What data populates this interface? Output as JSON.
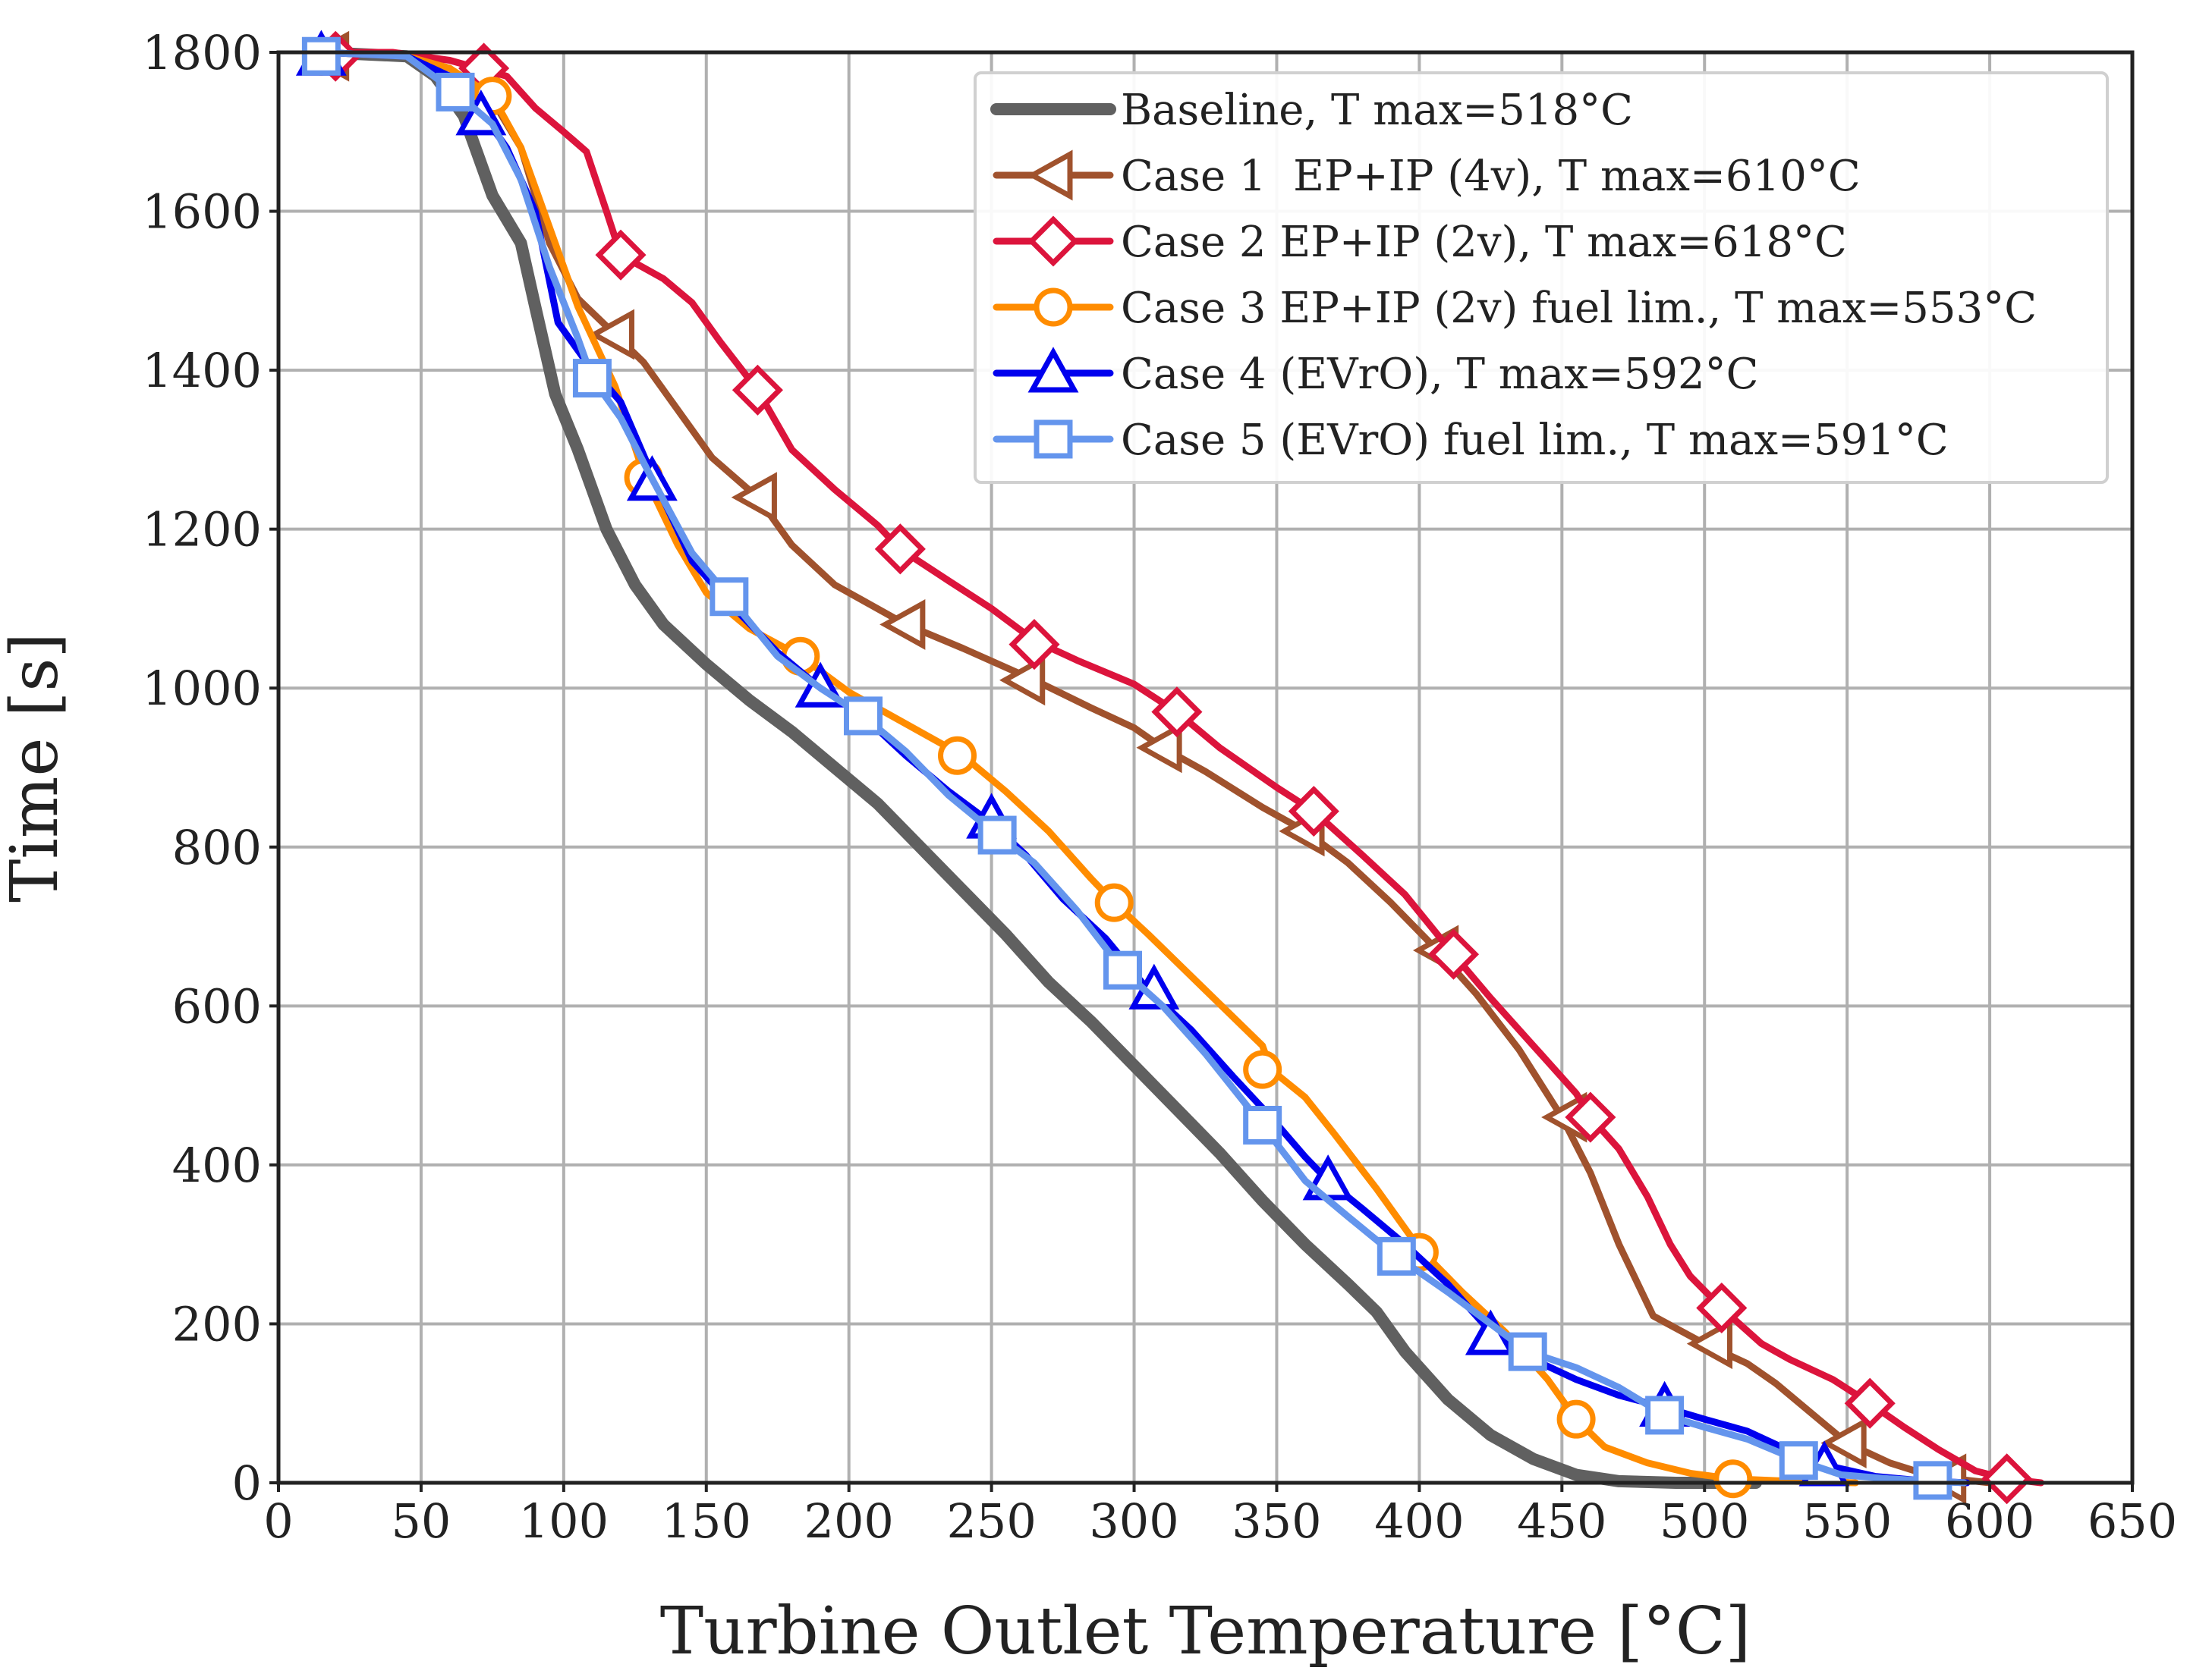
{
  "chart_data": {
    "type": "line",
    "title": "",
    "xlabel": "Turbine Outlet Temperature [°C]",
    "ylabel": "Time [s]",
    "xlim": [
      0,
      650
    ],
    "ylim": [
      0,
      1800
    ],
    "xticks": [
      0,
      50,
      100,
      150,
      200,
      250,
      300,
      350,
      400,
      450,
      500,
      550,
      600,
      650
    ],
    "yticks": [
      0,
      200,
      400,
      600,
      800,
      1000,
      1200,
      1400,
      1600,
      1800
    ],
    "grid": true,
    "legend_position": "top-right",
    "series": [
      {
        "name": "Baseline, T max=518°C",
        "color": "#606060",
        "marker": "none",
        "line_width": 16,
        "points": [
          [
            15,
            1800
          ],
          [
            45,
            1795
          ],
          [
            55,
            1770
          ],
          [
            65,
            1720
          ],
          [
            75,
            1620
          ],
          [
            85,
            1560
          ],
          [
            90,
            1480
          ],
          [
            97,
            1370
          ],
          [
            105,
            1300
          ],
          [
            115,
            1200
          ],
          [
            125,
            1130
          ],
          [
            135,
            1080
          ],
          [
            150,
            1030
          ],
          [
            165,
            985
          ],
          [
            180,
            945
          ],
          [
            195,
            900
          ],
          [
            210,
            855
          ],
          [
            225,
            800
          ],
          [
            240,
            745
          ],
          [
            255,
            690
          ],
          [
            270,
            630
          ],
          [
            285,
            580
          ],
          [
            300,
            525
          ],
          [
            315,
            470
          ],
          [
            330,
            415
          ],
          [
            345,
            355
          ],
          [
            360,
            300
          ],
          [
            375,
            250
          ],
          [
            385,
            215
          ],
          [
            395,
            165
          ],
          [
            410,
            105
          ],
          [
            425,
            60
          ],
          [
            440,
            30
          ],
          [
            455,
            10
          ],
          [
            470,
            2
          ],
          [
            490,
            0
          ],
          [
            518,
            0
          ]
        ],
        "markers": []
      },
      {
        "name": "Case 1  EP+IP (4v), T max=610°C",
        "color": "#A0522D",
        "marker": "triangle-left",
        "line_width": 9,
        "points": [
          [
            15,
            1800
          ],
          [
            45,
            1795
          ],
          [
            60,
            1780
          ],
          [
            75,
            1740
          ],
          [
            85,
            1680
          ],
          [
            95,
            1560
          ],
          [
            105,
            1490
          ],
          [
            118,
            1445
          ],
          [
            128,
            1410
          ],
          [
            140,
            1350
          ],
          [
            152,
            1290
          ],
          [
            168,
            1240
          ],
          [
            180,
            1180
          ],
          [
            195,
            1130
          ],
          [
            210,
            1100
          ],
          [
            220,
            1080
          ],
          [
            240,
            1050
          ],
          [
            265,
            1010
          ],
          [
            285,
            975
          ],
          [
            300,
            950
          ],
          [
            310,
            925
          ],
          [
            325,
            895
          ],
          [
            345,
            850
          ],
          [
            360,
            820
          ],
          [
            375,
            780
          ],
          [
            390,
            730
          ],
          [
            405,
            675
          ],
          [
            420,
            615
          ],
          [
            435,
            545
          ],
          [
            450,
            460
          ],
          [
            460,
            390
          ],
          [
            470,
            300
          ],
          [
            482,
            210
          ],
          [
            500,
            175
          ],
          [
            515,
            150
          ],
          [
            525,
            125
          ],
          [
            540,
            80
          ],
          [
            550,
            50
          ],
          [
            565,
            25
          ],
          [
            580,
            8
          ],
          [
            600,
            0
          ],
          [
            610,
            0
          ]
        ],
        "markers": [
          [
            18,
            1795
          ],
          [
            118,
            1445
          ],
          [
            168,
            1240
          ],
          [
            220,
            1080
          ],
          [
            262,
            1010
          ],
          [
            310,
            925
          ],
          [
            360,
            820
          ],
          [
            407,
            670
          ],
          [
            452,
            460
          ],
          [
            503,
            175
          ],
          [
            550,
            50
          ],
          [
            585,
            5
          ]
        ]
      },
      {
        "name": "Case 2 EP+IP (2v), T max=618°C",
        "color": "#DC143C",
        "marker": "diamond",
        "line_width": 9,
        "points": [
          [
            15,
            1800
          ],
          [
            40,
            1800
          ],
          [
            60,
            1790
          ],
          [
            70,
            1780
          ],
          [
            80,
            1770
          ],
          [
            90,
            1730
          ],
          [
            100,
            1700
          ],
          [
            108,
            1675
          ],
          [
            115,
            1600
          ],
          [
            120,
            1545
          ],
          [
            135,
            1515
          ],
          [
            145,
            1485
          ],
          [
            155,
            1435
          ],
          [
            168,
            1375
          ],
          [
            180,
            1300
          ],
          [
            195,
            1250
          ],
          [
            210,
            1205
          ],
          [
            218,
            1175
          ],
          [
            235,
            1135
          ],
          [
            250,
            1100
          ],
          [
            265,
            1060
          ],
          [
            280,
            1035
          ],
          [
            300,
            1005
          ],
          [
            315,
            970
          ],
          [
            330,
            925
          ],
          [
            350,
            875
          ],
          [
            363,
            845
          ],
          [
            380,
            790
          ],
          [
            395,
            740
          ],
          [
            412,
            665
          ],
          [
            425,
            610
          ],
          [
            440,
            550
          ],
          [
            455,
            490
          ],
          [
            460,
            460
          ],
          [
            470,
            420
          ],
          [
            480,
            360
          ],
          [
            488,
            300
          ],
          [
            495,
            260
          ],
          [
            506,
            220
          ],
          [
            520,
            175
          ],
          [
            530,
            155
          ],
          [
            545,
            130
          ],
          [
            558,
            100
          ],
          [
            570,
            70
          ],
          [
            582,
            42
          ],
          [
            595,
            15
          ],
          [
            606,
            5
          ],
          [
            618,
            0
          ]
        ],
        "markers": [
          [
            20,
            1795
          ],
          [
            72,
            1780
          ],
          [
            120,
            1545
          ],
          [
            168,
            1375
          ],
          [
            218,
            1175
          ],
          [
            265,
            1055
          ],
          [
            315,
            970
          ],
          [
            363,
            845
          ],
          [
            412,
            665
          ],
          [
            460,
            460
          ],
          [
            506,
            220
          ],
          [
            558,
            100
          ],
          [
            606,
            5
          ]
        ]
      },
      {
        "name": "Case 3 EP+IP (2v) fuel lim., T max=553°C",
        "color": "#FF8C00",
        "marker": "circle",
        "line_width": 9,
        "points": [
          [
            15,
            1800
          ],
          [
            45,
            1795
          ],
          [
            60,
            1780
          ],
          [
            75,
            1745
          ],
          [
            85,
            1680
          ],
          [
            95,
            1580
          ],
          [
            105,
            1480
          ],
          [
            118,
            1380
          ],
          [
            128,
            1270
          ],
          [
            140,
            1180
          ],
          [
            150,
            1120
          ],
          [
            165,
            1075
          ],
          [
            183,
            1040
          ],
          [
            200,
            995
          ],
          [
            220,
            955
          ],
          [
            240,
            915
          ],
          [
            255,
            870
          ],
          [
            270,
            820
          ],
          [
            285,
            760
          ],
          [
            293,
            730
          ],
          [
            305,
            690
          ],
          [
            325,
            620
          ],
          [
            345,
            550
          ],
          [
            348,
            520
          ],
          [
            360,
            485
          ],
          [
            370,
            440
          ],
          [
            385,
            370
          ],
          [
            400,
            295
          ],
          [
            415,
            240
          ],
          [
            430,
            190
          ],
          [
            445,
            130
          ],
          [
            455,
            80
          ],
          [
            465,
            45
          ],
          [
            480,
            25
          ],
          [
            495,
            12
          ],
          [
            510,
            5
          ],
          [
            530,
            2
          ],
          [
            553,
            0
          ]
        ],
        "markers": [
          [
            15,
            1795
          ],
          [
            75,
            1745
          ],
          [
            128,
            1265
          ],
          [
            183,
            1040
          ],
          [
            238,
            915
          ],
          [
            293,
            730
          ],
          [
            345,
            520
          ],
          [
            400,
            290
          ],
          [
            455,
            80
          ],
          [
            510,
            5
          ]
        ]
      },
      {
        "name": "Case 4 (EVrO), T max=592°C",
        "color": "#0000EE",
        "marker": "triangle-up",
        "line_width": 9,
        "points": [
          [
            15,
            1800
          ],
          [
            45,
            1795
          ],
          [
            60,
            1770
          ],
          [
            72,
            1720
          ],
          [
            80,
            1680
          ],
          [
            90,
            1600
          ],
          [
            98,
            1460
          ],
          [
            108,
            1410
          ],
          [
            120,
            1360
          ],
          [
            132,
            1260
          ],
          [
            145,
            1160
          ],
          [
            160,
            1100
          ],
          [
            175,
            1045
          ],
          [
            190,
            1000
          ],
          [
            205,
            965
          ],
          [
            220,
            915
          ],
          [
            235,
            870
          ],
          [
            250,
            830
          ],
          [
            262,
            790
          ],
          [
            275,
            735
          ],
          [
            290,
            685
          ],
          [
            305,
            620
          ],
          [
            320,
            570
          ],
          [
            335,
            510
          ],
          [
            348,
            460
          ],
          [
            360,
            410
          ],
          [
            368,
            380
          ],
          [
            380,
            345
          ],
          [
            395,
            300
          ],
          [
            410,
            250
          ],
          [
            425,
            190
          ],
          [
            440,
            155
          ],
          [
            455,
            130
          ],
          [
            470,
            110
          ],
          [
            486,
            95
          ],
          [
            500,
            80
          ],
          [
            515,
            65
          ],
          [
            530,
            40
          ],
          [
            545,
            20
          ],
          [
            560,
            8
          ],
          [
            575,
            3
          ],
          [
            592,
            0
          ]
        ],
        "markers": [
          [
            15,
            1795
          ],
          [
            71,
            1720
          ],
          [
            131,
            1260
          ],
          [
            190,
            1000
          ],
          [
            250,
            835
          ],
          [
            307,
            620
          ],
          [
            368,
            380
          ],
          [
            425,
            185
          ],
          [
            486,
            95
          ],
          [
            542,
            20
          ]
        ]
      },
      {
        "name": "Case 5 (EVrO) fuel lim., T max=591°C",
        "color": "#6495ED",
        "marker": "square",
        "line_width": 9,
        "points": [
          [
            15,
            1800
          ],
          [
            45,
            1795
          ],
          [
            62,
            1750
          ],
          [
            75,
            1710
          ],
          [
            85,
            1640
          ],
          [
            95,
            1530
          ],
          [
            105,
            1440
          ],
          [
            110,
            1390
          ],
          [
            120,
            1340
          ],
          [
            130,
            1270
          ],
          [
            145,
            1170
          ],
          [
            158,
            1115
          ],
          [
            175,
            1040
          ],
          [
            190,
            1000
          ],
          [
            205,
            965
          ],
          [
            220,
            920
          ],
          [
            235,
            865
          ],
          [
            252,
            815
          ],
          [
            265,
            780
          ],
          [
            280,
            720
          ],
          [
            296,
            645
          ],
          [
            310,
            600
          ],
          [
            325,
            540
          ],
          [
            345,
            450
          ],
          [
            360,
            380
          ],
          [
            375,
            335
          ],
          [
            392,
            285
          ],
          [
            410,
            240
          ],
          [
            425,
            200
          ],
          [
            438,
            165
          ],
          [
            455,
            145
          ],
          [
            470,
            120
          ],
          [
            486,
            85
          ],
          [
            500,
            70
          ],
          [
            515,
            55
          ],
          [
            533,
            28
          ],
          [
            548,
            10
          ],
          [
            565,
            5
          ],
          [
            580,
            2
          ],
          [
            591,
            0
          ]
        ],
        "markers": [
          [
            15,
            1795
          ],
          [
            62,
            1750
          ],
          [
            110,
            1390
          ],
          [
            158,
            1115
          ],
          [
            205,
            965
          ],
          [
            252,
            815
          ],
          [
            296,
            645
          ],
          [
            345,
            450
          ],
          [
            392,
            285
          ],
          [
            438,
            165
          ],
          [
            486,
            85
          ],
          [
            533,
            28
          ],
          [
            580,
            3
          ]
        ]
      }
    ]
  }
}
